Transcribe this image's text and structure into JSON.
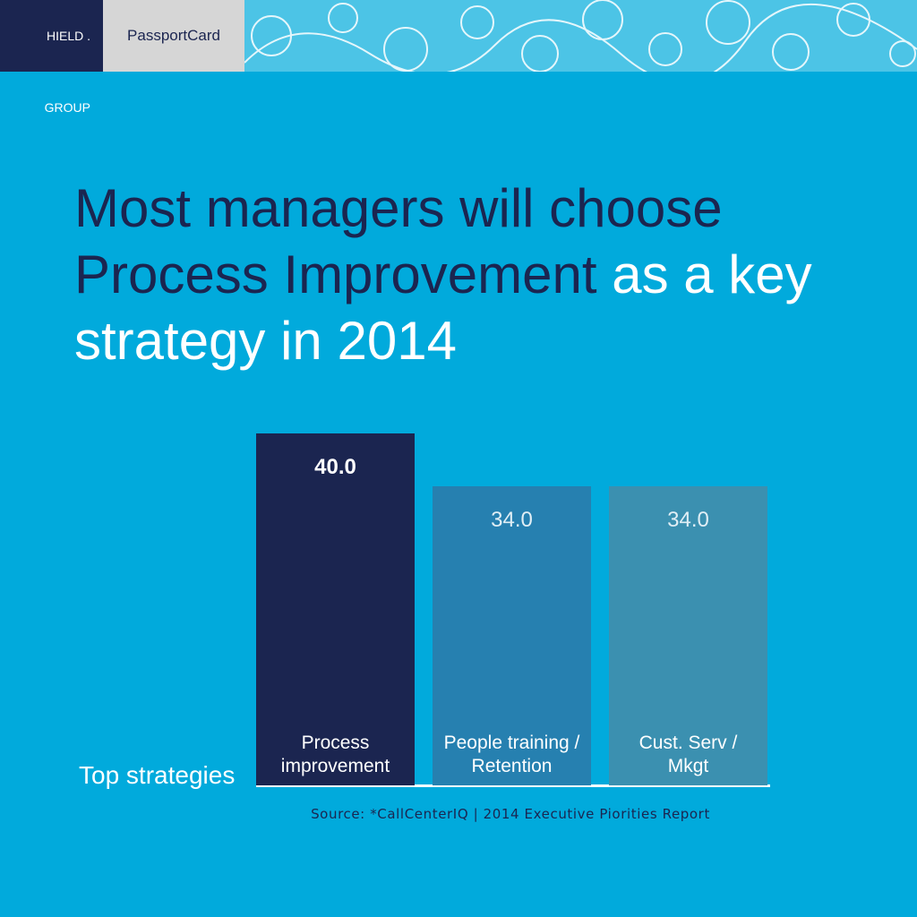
{
  "header": {
    "logos": [
      "HIELD . GROUP",
      "PassportCard"
    ]
  },
  "chart_data": {
    "type": "bar",
    "title": [
      "Most managers will choose Process Improvement",
      "as a key strategy in 2014"
    ],
    "x_label": "Top strategies",
    "categories": [
      "Process improvement",
      "People training / Retention",
      "Cust. Serv / Mkgt"
    ],
    "values": [
      40,
      34,
      34
    ],
    "value_labels": [
      "40.0",
      "34.0",
      "34.0"
    ],
    "colors": [
      "#1b2550",
      "#2680b0",
      "#3b90b0"
    ],
    "source": "Source: *CallCenterIQ | 2014 Executive Piorities Report"
  }
}
